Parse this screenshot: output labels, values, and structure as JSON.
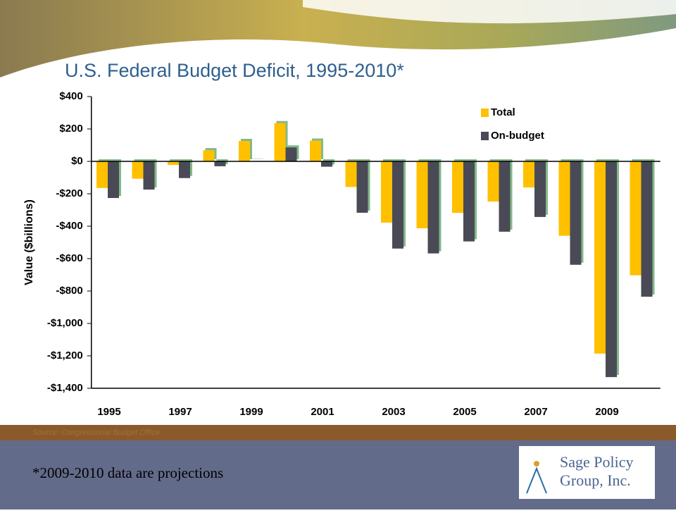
{
  "chart_data": {
    "type": "bar",
    "title": "U.S. Federal Budget Deficit, 1995-2010*",
    "y_label": "Value ($billions)",
    "source": "Source:  Congressional Budget Office",
    "footnote": "*2009-2010 data are projections",
    "categories": [
      "1995",
      null,
      "1997",
      null,
      "1999",
      null,
      "2001",
      null,
      "2003",
      null,
      "2005",
      null,
      "2007",
      null,
      "2009",
      null
    ],
    "series": [
      {
        "name": "Total",
        "color": "#ffc000",
        "values": [
          -164,
          -107,
          -22,
          69,
          126,
          236,
          128,
          -158,
          -378,
          -413,
          -318,
          -248,
          -161,
          -459,
          -1186,
          -703
        ]
      },
      {
        "name": "On-budget",
        "color": "#4a4a56",
        "values": [
          -226,
          -174,
          -103,
          -30,
          2,
          86,
          -33,
          -317,
          -538,
          -568,
          -494,
          -434,
          -343,
          -638,
          -1331,
          -835
        ]
      }
    ],
    "ylim": [
      -1400,
      400
    ],
    "yticks": [
      {
        "value": -1400,
        "label": "-$1,400"
      },
      {
        "value": -1200,
        "label": "-$1,200"
      },
      {
        "value": -1000,
        "label": "-$1,000"
      },
      {
        "value": -800,
        "label": "-$800"
      },
      {
        "value": -600,
        "label": "-$600"
      },
      {
        "value": -400,
        "label": "-$400"
      },
      {
        "value": -200,
        "label": "-$200"
      },
      {
        "value": 0,
        "label": "$0"
      },
      {
        "value": 200,
        "label": "$200"
      },
      {
        "value": 400,
        "label": "$400"
      }
    ],
    "legend": "upper right",
    "grid": false
  },
  "logo": {
    "line1": "Sage Policy",
    "line2": "Group, Inc."
  }
}
